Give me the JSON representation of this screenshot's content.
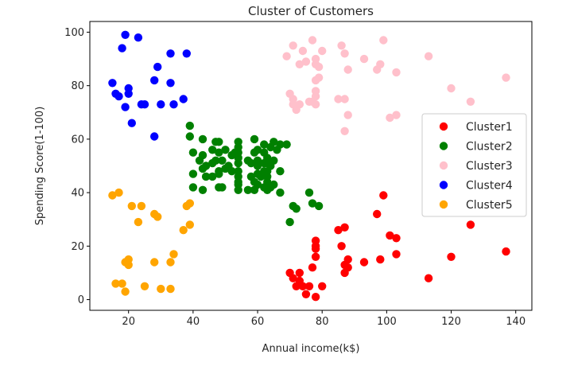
{
  "chart_data": {
    "type": "scatter",
    "title": "Cluster of Customers",
    "xlabel": "Annual income(k$)",
    "ylabel": "Spending Score(1-100)",
    "xlim": [
      8,
      145
    ],
    "ylim": [
      -4,
      104
    ],
    "xticks": [
      20,
      40,
      60,
      80,
      100,
      120,
      140
    ],
    "yticks": [
      0,
      20,
      40,
      60,
      80,
      100
    ],
    "grid": false,
    "legend_position": "center-right",
    "series": [
      {
        "name": "Cluster1",
        "color": "#ff0000",
        "points": [
          [
            70,
            10
          ],
          [
            71,
            8
          ],
          [
            72,
            5
          ],
          [
            73,
            7
          ],
          [
            73,
            10
          ],
          [
            74,
            5
          ],
          [
            75,
            2
          ],
          [
            76,
            5
          ],
          [
            77,
            12
          ],
          [
            78,
            1
          ],
          [
            78,
            16
          ],
          [
            78,
            19
          ],
          [
            78,
            22
          ],
          [
            78,
            20
          ],
          [
            80,
            5
          ],
          [
            85,
            26
          ],
          [
            86,
            20
          ],
          [
            87,
            27
          ],
          [
            87,
            10
          ],
          [
            87,
            13
          ],
          [
            88,
            12
          ],
          [
            88,
            15
          ],
          [
            93,
            14
          ],
          [
            97,
            32
          ],
          [
            98,
            15
          ],
          [
            99,
            39
          ],
          [
            101,
            24
          ],
          [
            103,
            23
          ],
          [
            103,
            17
          ],
          [
            113,
            8
          ],
          [
            120,
            16
          ],
          [
            126,
            28
          ],
          [
            137,
            18
          ]
        ]
      },
      {
        "name": "Cluster2",
        "color": "#008000",
        "points": [
          [
            39,
            61
          ],
          [
            39,
            65
          ],
          [
            40,
            55
          ],
          [
            40,
            47
          ],
          [
            40,
            42
          ],
          [
            42,
            52
          ],
          [
            43,
            60
          ],
          [
            43,
            54
          ],
          [
            43,
            49
          ],
          [
            43,
            41
          ],
          [
            44,
            50
          ],
          [
            44,
            46
          ],
          [
            46,
            51
          ],
          [
            46,
            46
          ],
          [
            46,
            56
          ],
          [
            47,
            52
          ],
          [
            47,
            59
          ],
          [
            48,
            48
          ],
          [
            48,
            59
          ],
          [
            48,
            55
          ],
          [
            48,
            47
          ],
          [
            48,
            42
          ],
          [
            49,
            42
          ],
          [
            49,
            52
          ],
          [
            50,
            49
          ],
          [
            50,
            56
          ],
          [
            51,
            50
          ],
          [
            52,
            48
          ],
          [
            52,
            54
          ],
          [
            53,
            55
          ],
          [
            54,
            41
          ],
          [
            54,
            44
          ],
          [
            54,
            48
          ],
          [
            54,
            55
          ],
          [
            54,
            57
          ],
          [
            54,
            51
          ],
          [
            54,
            43
          ],
          [
            54,
            46
          ],
          [
            54,
            53
          ],
          [
            54,
            59
          ],
          [
            57,
            52
          ],
          [
            57,
            41
          ],
          [
            58,
            46
          ],
          [
            58,
            51
          ],
          [
            59,
            55
          ],
          [
            59,
            60
          ],
          [
            59,
            41
          ],
          [
            59,
            44
          ],
          [
            60,
            47
          ],
          [
            60,
            43
          ],
          [
            60,
            52
          ],
          [
            60,
            56
          ],
          [
            60,
            50
          ],
          [
            61,
            46
          ],
          [
            62,
            58
          ],
          [
            62,
            42
          ],
          [
            62,
            48
          ],
          [
            62,
            51
          ],
          [
            62,
            55
          ],
          [
            63,
            44
          ],
          [
            63,
            51
          ],
          [
            63,
            41
          ],
          [
            63,
            53
          ],
          [
            63,
            46
          ],
          [
            63,
            48
          ],
          [
            64,
            57
          ],
          [
            64,
            42
          ],
          [
            64,
            50
          ],
          [
            65,
            52
          ],
          [
            65,
            59
          ],
          [
            65,
            43
          ],
          [
            66,
            56
          ],
          [
            67,
            58
          ],
          [
            67,
            40
          ],
          [
            67,
            48
          ],
          [
            69,
            58
          ],
          [
            70,
            29
          ],
          [
            71,
            35
          ],
          [
            72,
            34
          ],
          [
            76,
            40
          ],
          [
            77,
            36
          ],
          [
            79,
            35
          ]
        ]
      },
      {
        "name": "Cluster3",
        "color": "#ffc0cb",
        "points": [
          [
            69,
            91
          ],
          [
            70,
            77
          ],
          [
            71,
            95
          ],
          [
            71,
            75
          ],
          [
            71,
            73
          ],
          [
            72,
            71
          ],
          [
            73,
            88
          ],
          [
            73,
            73
          ],
          [
            74,
            93
          ],
          [
            75,
            89
          ],
          [
            76,
            74
          ],
          [
            77,
            97
          ],
          [
            77,
            74
          ],
          [
            78,
            88
          ],
          [
            78,
            73
          ],
          [
            78,
            90
          ],
          [
            78,
            76
          ],
          [
            78,
            78
          ],
          [
            78,
            82
          ],
          [
            79,
            87
          ],
          [
            79,
            83
          ],
          [
            80,
            93
          ],
          [
            85,
            75
          ],
          [
            86,
            95
          ],
          [
            87,
            63
          ],
          [
            87,
            75
          ],
          [
            87,
            92
          ],
          [
            88,
            86
          ],
          [
            88,
            69
          ],
          [
            93,
            90
          ],
          [
            97,
            86
          ],
          [
            98,
            88
          ],
          [
            99,
            97
          ],
          [
            101,
            68
          ],
          [
            103,
            69
          ],
          [
            103,
            85
          ],
          [
            113,
            91
          ],
          [
            120,
            79
          ],
          [
            126,
            74
          ],
          [
            137,
            83
          ]
        ]
      },
      {
        "name": "Cluster4",
        "color": "#0000ff",
        "points": [
          [
            15,
            81
          ],
          [
            16,
            77
          ],
          [
            17,
            76
          ],
          [
            18,
            94
          ],
          [
            19,
            72
          ],
          [
            19,
            99
          ],
          [
            20,
            77
          ],
          [
            20,
            79
          ],
          [
            21,
            66
          ],
          [
            23,
            98
          ],
          [
            24,
            73
          ],
          [
            25,
            73
          ],
          [
            28,
            82
          ],
          [
            28,
            61
          ],
          [
            29,
            87
          ],
          [
            30,
            73
          ],
          [
            33,
            92
          ],
          [
            33,
            81
          ],
          [
            34,
            73
          ],
          [
            37,
            75
          ],
          [
            38,
            92
          ]
        ]
      },
      {
        "name": "Cluster5",
        "color": "#ffa500",
        "points": [
          [
            15,
            39
          ],
          [
            16,
            6
          ],
          [
            17,
            40
          ],
          [
            18,
            6
          ],
          [
            19,
            3
          ],
          [
            19,
            14
          ],
          [
            20,
            15
          ],
          [
            20,
            13
          ],
          [
            21,
            35
          ],
          [
            23,
            29
          ],
          [
            24,
            35
          ],
          [
            25,
            5
          ],
          [
            28,
            14
          ],
          [
            28,
            32
          ],
          [
            29,
            31
          ],
          [
            30,
            4
          ],
          [
            33,
            4
          ],
          [
            33,
            14
          ],
          [
            34,
            17
          ],
          [
            37,
            26
          ],
          [
            38,
            35
          ],
          [
            39,
            28
          ],
          [
            39,
            36
          ]
        ]
      }
    ]
  }
}
